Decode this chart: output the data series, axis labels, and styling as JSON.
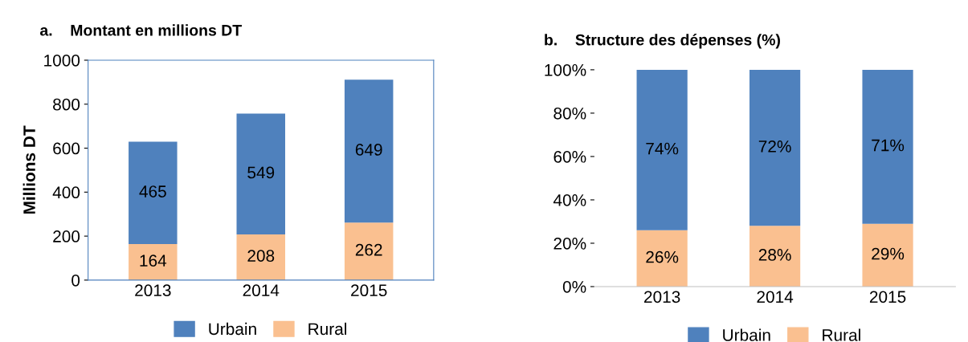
{
  "chart_data": [
    {
      "type": "bar",
      "title": "a.    Montant en millions DT",
      "ylabel": "Millions DT",
      "categories": [
        "2013",
        "2014",
        "2015"
      ],
      "stacked": true,
      "series": [
        {
          "name": "Rural",
          "color": "#fac090",
          "values": [
            164,
            208,
            262
          ]
        },
        {
          "name": "Urbain",
          "color": "#4f81bd",
          "values": [
            465,
            549,
            649
          ]
        }
      ],
      "ylim": [
        0,
        1000
      ],
      "yticks": [
        0,
        200,
        400,
        600,
        800,
        1000
      ],
      "data_labels": true,
      "legend": "bottom",
      "grid": false
    },
    {
      "type": "bar",
      "title": "b.    Structure des dépenses (%)",
      "categories": [
        "2013",
        "2014",
        "2015"
      ],
      "stacked": true,
      "series": [
        {
          "name": "Rural",
          "color": "#fac090",
          "values": [
            26,
            28,
            29
          ],
          "value_labels": [
            "26%",
            "28%",
            "29%"
          ]
        },
        {
          "name": "Urbain",
          "color": "#4f81bd",
          "values": [
            74,
            72,
            71
          ],
          "value_labels": [
            "74%",
            "72%",
            "71%"
          ]
        }
      ],
      "ylim": [
        0,
        100
      ],
      "yticks": [
        {
          "value": 0,
          "label": "0%"
        },
        {
          "value": 20,
          "label": "20%"
        },
        {
          "value": 40,
          "label": "40%"
        },
        {
          "value": 60,
          "label": "60%"
        },
        {
          "value": 80,
          "label": "80%"
        },
        {
          "value": 100,
          "label": "100%"
        }
      ],
      "legend": "bottom",
      "grid": false
    }
  ]
}
